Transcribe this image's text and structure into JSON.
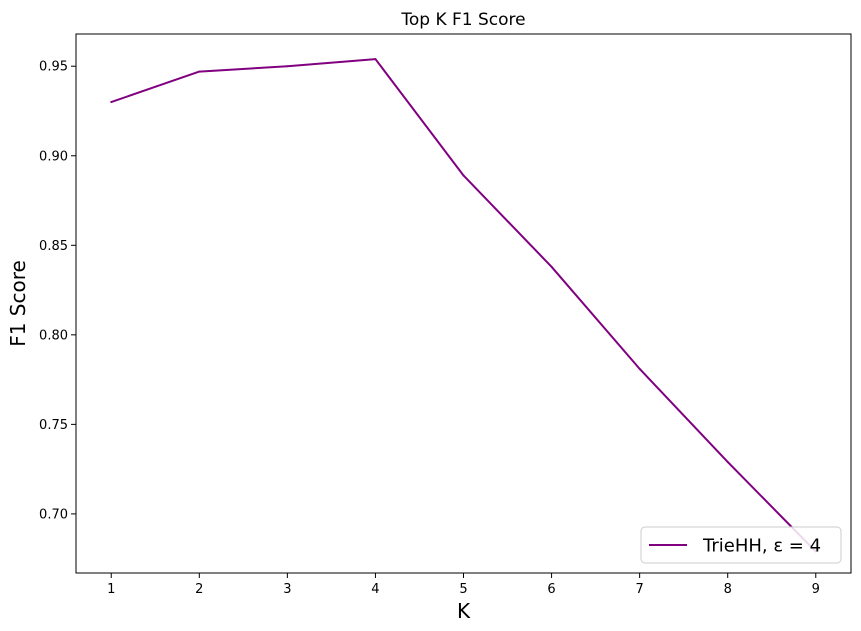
{
  "chart_data": {
    "type": "line",
    "title": "Top K F1 Score",
    "xlabel": "K",
    "ylabel": "F1 Score",
    "x": [
      1,
      2,
      3,
      4,
      5,
      6,
      7,
      8,
      9
    ],
    "xlim": [
      0.6,
      9.4
    ],
    "ylim": [
      0.667,
      0.968
    ],
    "xticks": [
      1,
      2,
      3,
      4,
      5,
      6,
      7,
      8,
      9
    ],
    "yticks": [
      0.7,
      0.75,
      0.8,
      0.85,
      0.9,
      0.95
    ],
    "ytick_labels": [
      "0.70",
      "0.75",
      "0.80",
      "0.85",
      "0.90",
      "0.95"
    ],
    "grid": false,
    "legend_position": "lower right",
    "series": [
      {
        "name": "TrieHH, ε = 4",
        "color": "#800080",
        "values": [
          0.93,
          0.947,
          0.95,
          0.954,
          0.889,
          0.838,
          0.781,
          0.729,
          0.679
        ]
      }
    ]
  }
}
